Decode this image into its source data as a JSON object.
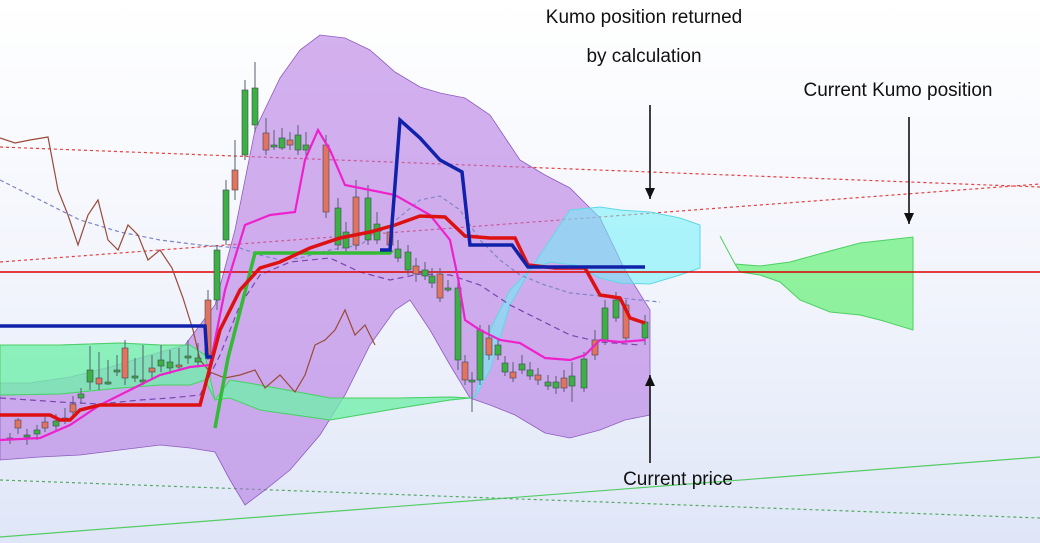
{
  "chart_data": {
    "type": "candlestick",
    "title": "",
    "xlabel": "",
    "ylabel": "",
    "grid": false,
    "legend": "none",
    "colors": {
      "bullish_candle": "#3cb043",
      "bearish_candle": "#e2735f",
      "candle_wick": "#556070",
      "tenkan_sen": "#ee22cc",
      "kijun_sen": "#dd1111",
      "higher_timeframe_kijun": "#1122aa",
      "higher_timeframe_tenkan": "#33bb33",
      "chikou_span": "#9a4a3a",
      "bollinger_band": "#b070e0",
      "kumo_bullish": "#6ef07e",
      "kumo_bearish": "#70f0f8",
      "horizontal_level": "#dd0000"
    },
    "annotations": [
      {
        "text": "Kumo position returned",
        "arrow": "down"
      },
      {
        "text": "by calculation",
        "arrow": "none"
      },
      {
        "text": "Current Kumo position",
        "arrow": "down"
      },
      {
        "text": "Current price",
        "arrow": "up"
      }
    ]
  }
}
